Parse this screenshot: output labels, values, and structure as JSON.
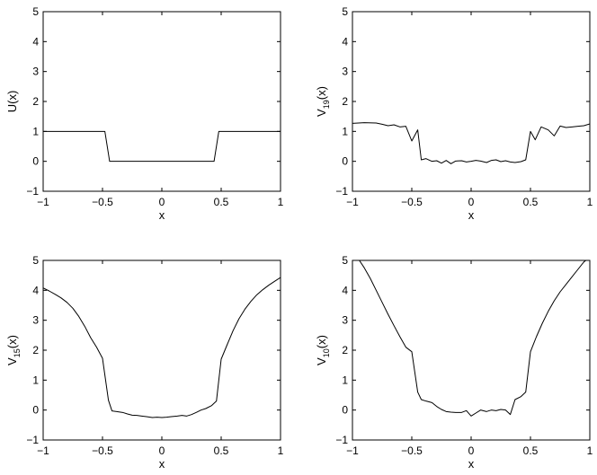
{
  "chart_data": [
    {
      "type": "line",
      "xlabel": "x",
      "ylabel": "U(x)",
      "ylabel_parts": {
        "base": "U",
        "sub": "",
        "suffix": "(x)"
      },
      "xlim": [
        -1,
        1
      ],
      "ylim": [
        -1,
        5
      ],
      "xticks": [
        -1,
        -0.5,
        0,
        0.5,
        1
      ],
      "xtick_labels": [
        "−1",
        "−0.5",
        "0",
        "0.5",
        "1"
      ],
      "yticks": [
        -1,
        0,
        1,
        2,
        3,
        4,
        5
      ],
      "ytick_labels": [
        "−1",
        "0",
        "1",
        "2",
        "3",
        "4",
        "5"
      ],
      "grid": false,
      "color": "#000000",
      "series": [
        {
          "x": [
            -1,
            -0.48,
            -0.44,
            0.44,
            0.48,
            1
          ],
          "y": [
            1,
            1,
            0,
            0,
            1,
            1
          ]
        }
      ]
    },
    {
      "type": "line",
      "xlabel": "x",
      "ylabel": "V19(x)",
      "ylabel_parts": {
        "base": "V",
        "sub": "19",
        "suffix": "(x)"
      },
      "xlim": [
        -1,
        1
      ],
      "ylim": [
        -1,
        5
      ],
      "xticks": [
        -1,
        -0.5,
        0,
        0.5,
        1
      ],
      "xtick_labels": [
        "−1",
        "−0.5",
        "0",
        "0.5",
        "1"
      ],
      "yticks": [
        -1,
        0,
        1,
        2,
        3,
        4,
        5
      ],
      "ytick_labels": [
        "−1",
        "0",
        "1",
        "2",
        "3",
        "4",
        "5"
      ],
      "grid": false,
      "color": "#000000",
      "series": [
        {
          "x": [
            -1,
            -0.9,
            -0.8,
            -0.75,
            -0.7,
            -0.65,
            -0.6,
            -0.55,
            -0.5,
            -0.45,
            -0.42,
            -0.38,
            -0.33,
            -0.29,
            -0.25,
            -0.21,
            -0.17,
            -0.13,
            -0.08,
            -0.04,
            0,
            0.04,
            0.08,
            0.13,
            0.17,
            0.21,
            0.25,
            0.29,
            0.33,
            0.37,
            0.42,
            0.46,
            0.5,
            0.54,
            0.59,
            0.65,
            0.7,
            0.75,
            0.8,
            0.85,
            0.9,
            0.95,
            1
          ],
          "y": [
            1.27,
            1.29,
            1.28,
            1.24,
            1.19,
            1.22,
            1.15,
            1.17,
            0.68,
            1.05,
            0.05,
            0.09,
            0.0,
            0.02,
            -0.06,
            0.03,
            -0.08,
            0.01,
            0.02,
            -0.02,
            0.0,
            0.03,
            0.01,
            -0.04,
            0.03,
            0.05,
            -0.01,
            0.02,
            -0.02,
            -0.04,
            -0.01,
            0.05,
            1.0,
            0.72,
            1.15,
            1.05,
            0.85,
            1.18,
            1.13,
            1.15,
            1.17,
            1.19,
            1.25
          ]
        }
      ]
    },
    {
      "type": "line",
      "xlabel": "x",
      "ylabel": "V15(x)",
      "ylabel_parts": {
        "base": "V",
        "sub": "15",
        "suffix": "(x)"
      },
      "xlim": [
        -1,
        1
      ],
      "ylim": [
        -1,
        5
      ],
      "xticks": [
        -1,
        -0.5,
        0,
        0.5,
        1
      ],
      "xtick_labels": [
        "−1",
        "−0.5",
        "0",
        "0.5",
        "1"
      ],
      "yticks": [
        -1,
        0,
        1,
        2,
        3,
        4,
        5
      ],
      "ytick_labels": [
        "−1",
        "0",
        "1",
        "2",
        "3",
        "4",
        "5"
      ],
      "grid": false,
      "color": "#000000",
      "series": [
        {
          "x": [
            -1,
            -0.95,
            -0.9,
            -0.85,
            -0.8,
            -0.75,
            -0.7,
            -0.65,
            -0.6,
            -0.55,
            -0.5,
            -0.45,
            -0.42,
            -0.38,
            -0.33,
            -0.29,
            -0.25,
            -0.21,
            -0.17,
            -0.13,
            -0.08,
            -0.04,
            0,
            0.04,
            0.08,
            0.13,
            0.17,
            0.21,
            0.25,
            0.29,
            0.33,
            0.37,
            0.42,
            0.46,
            0.5,
            0.55,
            0.6,
            0.65,
            0.7,
            0.75,
            0.8,
            0.85,
            0.9,
            0.95,
            1
          ],
          "y": [
            4.08,
            3.98,
            3.87,
            3.75,
            3.6,
            3.4,
            3.13,
            2.8,
            2.42,
            2.1,
            1.73,
            0.33,
            -0.03,
            -0.05,
            -0.08,
            -0.13,
            -0.17,
            -0.18,
            -0.2,
            -0.22,
            -0.25,
            -0.24,
            -0.25,
            -0.24,
            -0.22,
            -0.2,
            -0.18,
            -0.2,
            -0.15,
            -0.08,
            0.0,
            0.05,
            0.15,
            0.3,
            1.7,
            2.18,
            2.65,
            3.05,
            3.37,
            3.63,
            3.85,
            4.02,
            4.17,
            4.3,
            4.43
          ]
        }
      ]
    },
    {
      "type": "line",
      "xlabel": "x",
      "ylabel": "V10(x)",
      "ylabel_parts": {
        "base": "V",
        "sub": "10",
        "suffix": "(x)"
      },
      "xlim": [
        -1,
        1
      ],
      "ylim": [
        -1,
        5
      ],
      "xticks": [
        -1,
        -0.5,
        0,
        0.5,
        1
      ],
      "xtick_labels": [
        "−1",
        "−0.5",
        "0",
        "0.5",
        "1"
      ],
      "yticks": [
        -1,
        0,
        1,
        2,
        3,
        4,
        5
      ],
      "ytick_labels": [
        "−1",
        "0",
        "1",
        "2",
        "3",
        "4",
        "5"
      ],
      "grid": false,
      "color": "#000000",
      "series": [
        {
          "x": [
            -1,
            -0.95,
            -0.9,
            -0.85,
            -0.8,
            -0.75,
            -0.7,
            -0.65,
            -0.6,
            -0.55,
            -0.5,
            -0.45,
            -0.42,
            -0.38,
            -0.33,
            -0.29,
            -0.25,
            -0.21,
            -0.17,
            -0.13,
            -0.08,
            -0.04,
            0,
            0.04,
            0.08,
            0.13,
            0.17,
            0.21,
            0.25,
            0.29,
            0.33,
            0.37,
            0.42,
            0.46,
            0.5,
            0.55,
            0.6,
            0.65,
            0.7,
            0.75,
            0.8,
            0.85,
            0.9,
            0.95,
            1
          ],
          "y": [
            5.3,
            5.05,
            4.75,
            4.4,
            4.0,
            3.6,
            3.2,
            2.82,
            2.45,
            2.1,
            1.95,
            0.6,
            0.35,
            0.3,
            0.25,
            0.12,
            0.02,
            -0.05,
            -0.07,
            -0.08,
            -0.08,
            -0.02,
            -0.2,
            -0.1,
            0.0,
            -0.05,
            0.0,
            -0.02,
            0.02,
            0.0,
            -0.15,
            0.35,
            0.45,
            0.6,
            1.95,
            2.45,
            2.9,
            3.3,
            3.65,
            3.95,
            4.2,
            4.45,
            4.7,
            4.95,
            5.1
          ]
        }
      ]
    }
  ]
}
